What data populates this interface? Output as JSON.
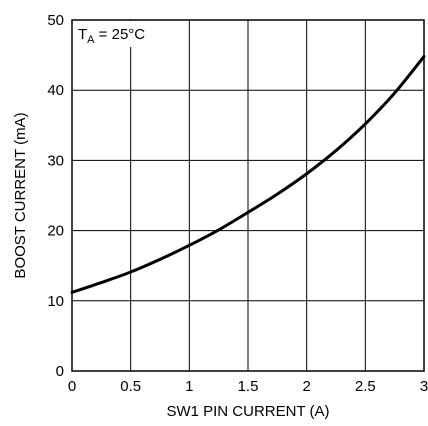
{
  "chart_data": {
    "type": "line",
    "title": "",
    "xlabel": "SW1 PIN CURRENT (A)",
    "ylabel": "BOOST CURRENT (mA)",
    "xlim": [
      0,
      3
    ],
    "ylim": [
      0,
      50
    ],
    "x_ticks": [
      "0",
      "0.5",
      "1",
      "1.5",
      "2",
      "2.5",
      "3"
    ],
    "y_ticks": [
      "0",
      "10",
      "20",
      "30",
      "40",
      "50"
    ],
    "grid": true,
    "annotation": {
      "main": "T",
      "subscript": "A",
      "rest": " = 25°C"
    },
    "series": [
      {
        "x": [
          0,
          0.25,
          0.5,
          0.75,
          1.0,
          1.25,
          1.5,
          1.75,
          2.0,
          2.25,
          2.5,
          2.75,
          3.0
        ],
        "y": [
          11.2,
          12.6,
          14.1,
          15.9,
          17.9,
          20.1,
          22.6,
          25.2,
          28.1,
          31.4,
          35.2,
          39.6,
          44.8
        ]
      }
    ],
    "colors": {
      "line": "#000000",
      "grid": "#000000",
      "background": "#ffffff"
    }
  }
}
